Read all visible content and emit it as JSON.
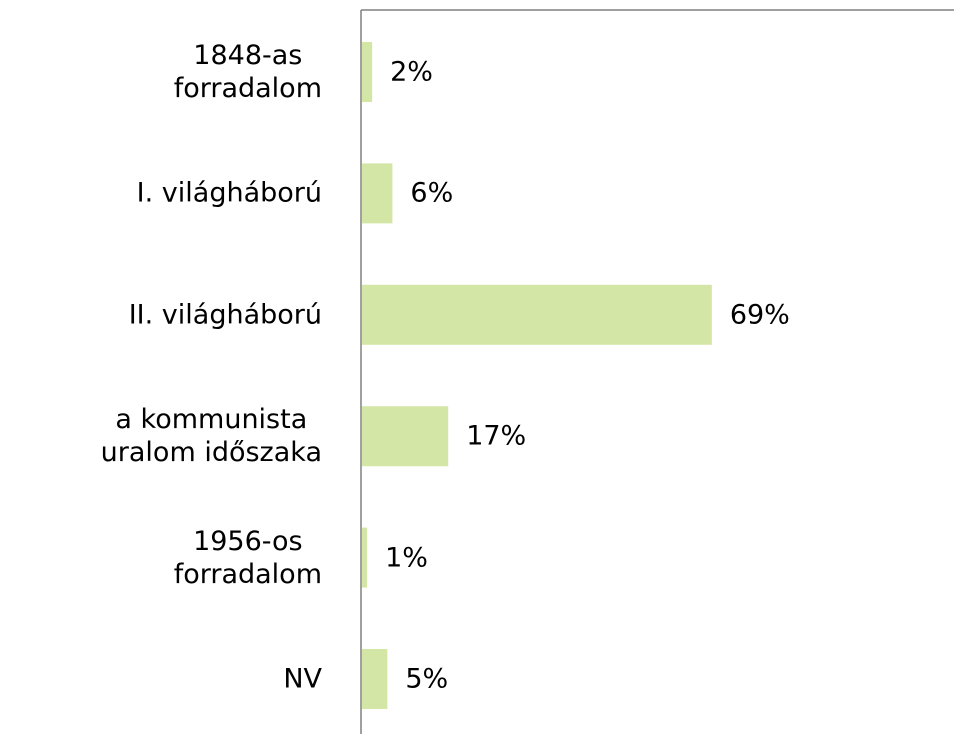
{
  "chart_data": {
    "type": "bar",
    "orientation": "horizontal",
    "categories": [
      "1848-as\nforradalom",
      "I. világháború",
      "II. világháború",
      "a kommunista\nuralom időszaka",
      "1956-os\nforradalom",
      "NV"
    ],
    "values": [
      2,
      6,
      69,
      17,
      1,
      5
    ],
    "value_labels": [
      "2%",
      "6%",
      "69%",
      "17%",
      "1%",
      "5%"
    ],
    "color": "#d3e6a6"
  }
}
